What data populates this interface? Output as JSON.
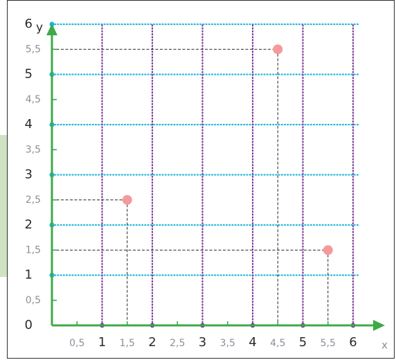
{
  "chart_data": {
    "type": "scatter",
    "xlabel": "x",
    "ylabel": "y",
    "xlim": [
      0,
      6
    ],
    "ylim": [
      0,
      6
    ],
    "x_ticks_major": [
      "1",
      "2",
      "3",
      "4",
      "5",
      "6"
    ],
    "x_ticks_minor": [
      "0,5",
      "1,5",
      "2,5",
      "3,5",
      "4,5",
      "5,5"
    ],
    "y_ticks_major": [
      "0",
      "1",
      "2",
      "3",
      "4",
      "5",
      "6"
    ],
    "y_ticks_minor": [
      "0,5",
      "1,5",
      "2,5",
      "3,5",
      "4,5",
      "5,5"
    ],
    "grid": true,
    "points": [
      {
        "x": 1.5,
        "y": 2.5
      },
      {
        "x": 4.5,
        "y": 5.5
      },
      {
        "x": 5.5,
        "y": 1.5
      }
    ],
    "colors": {
      "axis": "#3daa47",
      "horizontal_grid": "#1fb7e0",
      "vertical_grid": "#7a3d9c",
      "point": "#f59a9a",
      "guide": "#222222",
      "tick_label_major": "#2b2b2b",
      "tick_label_minor": "#8a8f98"
    }
  }
}
